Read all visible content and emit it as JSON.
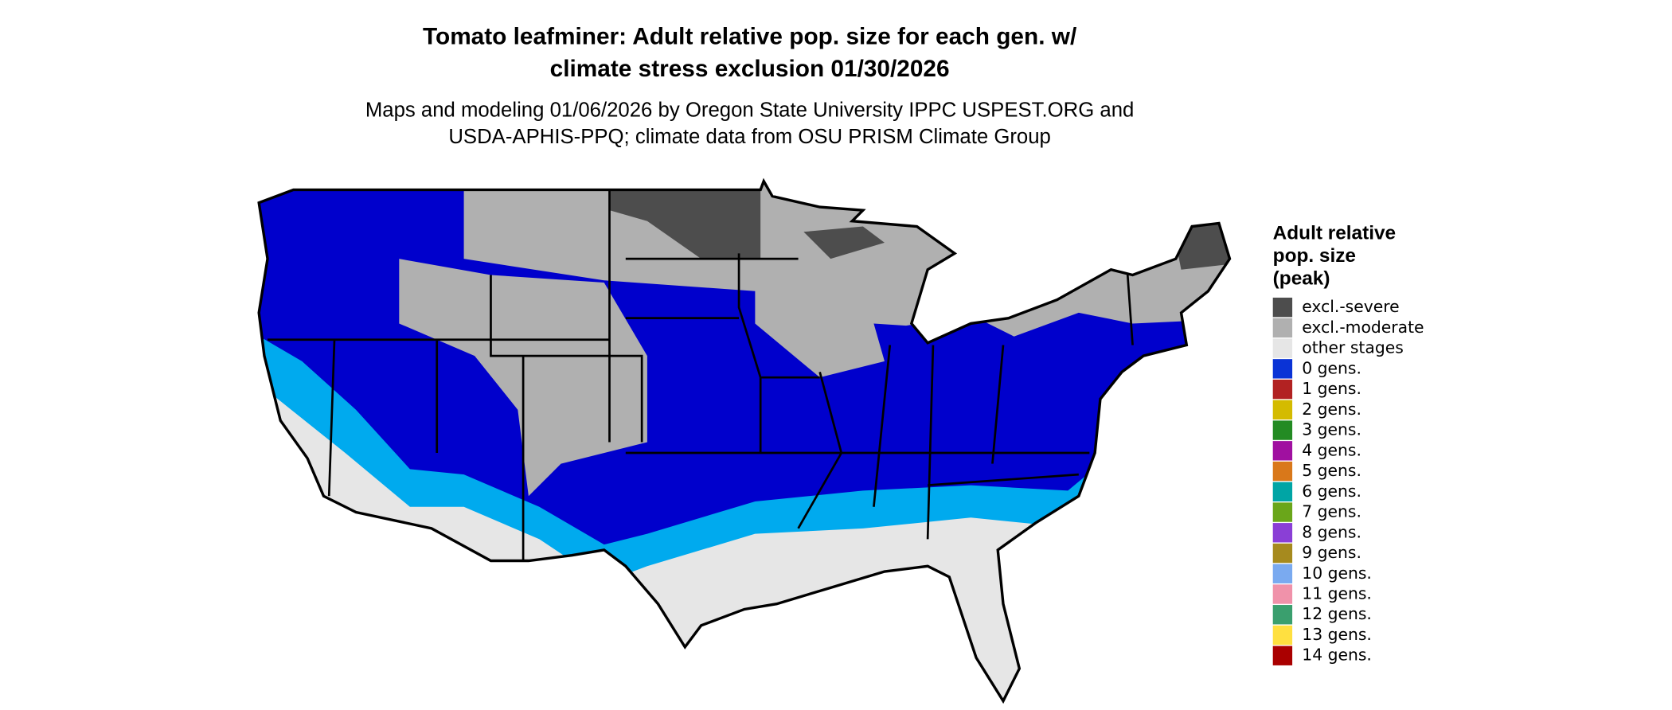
{
  "title": [
    "Tomato leafminer: Adult relative pop. size for each gen. w/",
    "climate stress exclusion 01/30/2026"
  ],
  "subtitle": [
    "Maps and modeling 01/06/2026 by Oregon State University IPPC USPEST.ORG and",
    "USDA-APHIS-PPQ; climate data from OSU PRISM Climate Group"
  ],
  "legend": {
    "title": [
      "Adult relative",
      "pop. size",
      "(peak)"
    ],
    "items": [
      {
        "label": "excl.-severe",
        "color": "#4d4d4d"
      },
      {
        "label": "excl.-moderate",
        "color": "#b0b0b0"
      },
      {
        "label": "other stages",
        "color": "#e6e6e6"
      },
      {
        "label": "0 gens.",
        "color": "#0a33d6"
      },
      {
        "label": "1 gens.",
        "color": "#b22222"
      },
      {
        "label": "2 gens.",
        "color": "#d4bb00"
      },
      {
        "label": "3 gens.",
        "color": "#238b23"
      },
      {
        "label": "4 gens.",
        "color": "#a010a0"
      },
      {
        "label": "5 gens.",
        "color": "#d9781a"
      },
      {
        "label": "6 gens.",
        "color": "#00a5a5"
      },
      {
        "label": "7 gens.",
        "color": "#6aa61a"
      },
      {
        "label": "8 gens.",
        "color": "#8a3fd6"
      },
      {
        "label": "9 gens.",
        "color": "#a68a1e"
      },
      {
        "label": "10 gens.",
        "color": "#7aaaf0"
      },
      {
        "label": "11 gens.",
        "color": "#f092aa"
      },
      {
        "label": "12 gens.",
        "color": "#3a9f6e"
      },
      {
        "label": "13 gens.",
        "color": "#ffe040"
      },
      {
        "label": "14 gens.",
        "color": "#aa0000"
      }
    ]
  }
}
